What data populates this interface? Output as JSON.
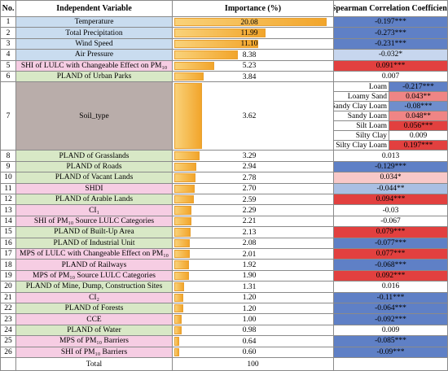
{
  "table": {
    "headers": [
      "No.",
      "Independent Variable",
      "Importance (%)",
      "Spearman Correlation Coefficient"
    ],
    "rows": [
      {
        "no": 1,
        "variable": "Temperature",
        "fill": "#c9dcef",
        "importance": 20.08,
        "correlation": "-0.197***",
        "corr_color": "#5f80c6"
      },
      {
        "no": 2,
        "variable": "Total Precipitation",
        "fill": "#c9dcef",
        "importance": 11.99,
        "correlation": "-0.273***",
        "corr_color": "#5f80c6"
      },
      {
        "no": 3,
        "variable": "Wind Speed",
        "fill": "#c9dcef",
        "importance": 11.1,
        "correlation": "-0.231***",
        "corr_color": "#5f80c6"
      },
      {
        "no": 4,
        "variable": "Air Pressure",
        "fill": "#c9dcef",
        "importance": 8.38,
        "correlation": "-0.032*",
        "corr_color": "#c7d6ee"
      },
      {
        "no": 5,
        "variable": "SHI of LULC with Changeable Effect on PM₁₀",
        "fill": "#f6cde3",
        "importance": 5.23,
        "correlation": "0.091***",
        "corr_color": "#e2403f"
      },
      {
        "no": 6,
        "variable": "PLAND of Urban Parks",
        "fill": "#d8e8c6",
        "importance": 3.84,
        "correlation": "0.007",
        "corr_color": "#ffffff"
      },
      {
        "no": 7,
        "variable": "Soil_type",
        "fill": "#b9adaa",
        "importance": 3.62,
        "correlation": [
          {
            "label": "Loam",
            "value": "-0.217***",
            "color": "#5f80c6"
          },
          {
            "label": "Loamy Sand",
            "value": "0.043**",
            "color": "#ef8585"
          },
          {
            "label": "Sandy Clay Loam",
            "value": "-0.08***",
            "color": "#6f8ecc"
          },
          {
            "label": "Sandy Loam",
            "value": "0.048**",
            "color": "#ef8585"
          },
          {
            "label": "Silt Loam",
            "value": "0.056***",
            "color": "#e2403f"
          },
          {
            "label": "Silty Clay",
            "value": "0.009",
            "color": "#ffffff"
          },
          {
            "label": "Silty Clay Loam",
            "value": "0.197***",
            "color": "#e2403f"
          }
        ]
      },
      {
        "no": 8,
        "variable": "PLAND of Grasslands",
        "fill": "#d8e8c6",
        "importance": 3.29,
        "correlation": "0.013",
        "corr_color": "#ffffff"
      },
      {
        "no": 9,
        "variable": "PLAND of Roads",
        "fill": "#d8e8c6",
        "importance": 2.94,
        "correlation": "-0.129***",
        "corr_color": "#5f80c6"
      },
      {
        "no": 10,
        "variable": "PLAND of Vacant Lands",
        "fill": "#d8e8c6",
        "importance": 2.78,
        "correlation": "0.034*",
        "corr_color": "#f8c8c8"
      },
      {
        "no": 11,
        "variable": "SHDI",
        "fill": "#f6cde3",
        "importance": 2.7,
        "correlation": "-0.044**",
        "corr_color": "#a9bfe3"
      },
      {
        "no": 12,
        "variable": "PLAND of Arable Lands",
        "fill": "#d8e8c6",
        "importance": 2.59,
        "correlation": "0.094***",
        "corr_color": "#e2403f"
      },
      {
        "no": 13,
        "variable": "CI₁",
        "fill": "#f6cde3",
        "importance": 2.29,
        "correlation": "-0.03",
        "corr_color": "#ffffff"
      },
      {
        "no": 14,
        "variable": "SHI of PM₁₀ Source LULC Categories",
        "fill": "#f6cde3",
        "importance": 2.21,
        "correlation": "-0.067",
        "corr_color": "#ffffff"
      },
      {
        "no": 15,
        "variable": "PLAND of Built-Up Area",
        "fill": "#d8e8c6",
        "importance": 2.13,
        "correlation": "0.079***",
        "corr_color": "#e2403f"
      },
      {
        "no": 16,
        "variable": "PLAND of Industrial Unit",
        "fill": "#d8e8c6",
        "importance": 2.08,
        "correlation": "-0.077***",
        "corr_color": "#5f80c6"
      },
      {
        "no": 17,
        "variable": "MPS of LULC with Changeable Effect on PM₁₀",
        "fill": "#f6cde3",
        "importance": 2.01,
        "correlation": "0.077***",
        "corr_color": "#e2403f"
      },
      {
        "no": 18,
        "variable": "PLAND of Railways",
        "fill": "#f6cde3",
        "importance": 1.92,
        "correlation": "-0.068***",
        "corr_color": "#5f80c6"
      },
      {
        "no": 19,
        "variable": "MPS of PM₁₀ Source LULC Categories",
        "fill": "#f6cde3",
        "importance": 1.9,
        "correlation": "0.092***",
        "corr_color": "#e2403f"
      },
      {
        "no": 20,
        "variable": "PLAND of Mine, Dump, Construction Sites",
        "fill": "#d8e8c6",
        "importance": 1.31,
        "correlation": "0.016",
        "corr_color": "#ffffff"
      },
      {
        "no": 21,
        "variable": "CI₂",
        "fill": "#f6cde3",
        "importance": 1.2,
        "correlation": "-0.11***",
        "corr_color": "#5f80c6"
      },
      {
        "no": 22,
        "variable": "PLAND of Forests",
        "fill": "#d8e8c6",
        "importance": 1.2,
        "correlation": "-0.064***",
        "corr_color": "#5f80c6"
      },
      {
        "no": 23,
        "variable": "CCE",
        "fill": "#f6cde3",
        "importance": 1.0,
        "correlation": "-0.092***",
        "corr_color": "#5f80c6"
      },
      {
        "no": 24,
        "variable": "PLAND of Water",
        "fill": "#d8e8c6",
        "importance": 0.98,
        "correlation": "0.009",
        "corr_color": "#ffffff"
      },
      {
        "no": 25,
        "variable": "MPS of PM₁₀ Barriers",
        "fill": "#f6cde3",
        "importance": 0.64,
        "correlation": "-0.085***",
        "corr_color": "#5f80c6"
      },
      {
        "no": 26,
        "variable": "SHI of PM₁₀ Barriers",
        "fill": "#f6cde3",
        "importance": 0.6,
        "correlation": "-0.09***",
        "corr_color": "#5f80c6"
      }
    ],
    "total": {
      "label": "Total",
      "importance": 100
    }
  }
}
